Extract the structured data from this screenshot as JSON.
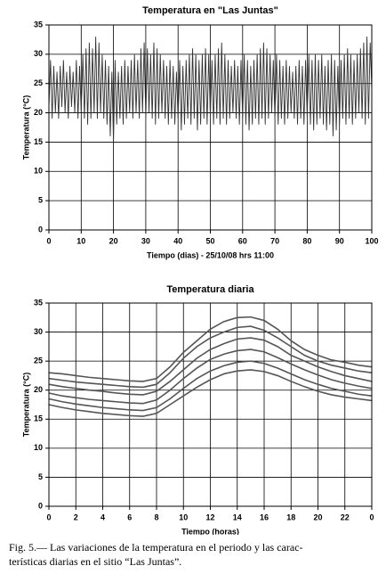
{
  "chart_data": [
    {
      "type": "line",
      "title": "Temperatura en \"Las Juntas\"",
      "xlabel": "Tiempo (dias) - 25/10/08 hrs 11:00",
      "ylabel": "Temperatura (°C)",
      "x": [
        0,
        0.5,
        1,
        1.5,
        2,
        2.5,
        3,
        3.5,
        4,
        4.5,
        5,
        5.5,
        6,
        6.5,
        7,
        7.5,
        8,
        8.5,
        9,
        9.5,
        10,
        10.5,
        11,
        11.5,
        12,
        12.5,
        13,
        13.5,
        14,
        14.5,
        15,
        15.5,
        16,
        16.5,
        17,
        17.5,
        18,
        18.5,
        19,
        19.5,
        20,
        20.5,
        21,
        21.5,
        22,
        22.5,
        23,
        23.5,
        24,
        24.5,
        25,
        25.5,
        26,
        26.5,
        27,
        27.5,
        28,
        28.5,
        29,
        29.5,
        30,
        30.5,
        31,
        31.5,
        32,
        32.5,
        33,
        33.5,
        34,
        34.5,
        35,
        35.5,
        36,
        36.5,
        37,
        37.5,
        38,
        38.5,
        39,
        39.5,
        40,
        40.5,
        41,
        41.5,
        42,
        42.5,
        43,
        43.5,
        44,
        44.5,
        45,
        45.5,
        46,
        46.5,
        47,
        47.5,
        48,
        48.5,
        49,
        49.5,
        50,
        50.5,
        51,
        51.5,
        52,
        52.5,
        53,
        53.5,
        54,
        54.5,
        55,
        55.5,
        56,
        56.5,
        57,
        57.5,
        58,
        58.5,
        59,
        59.5,
        60,
        60.5,
        61,
        61.5,
        62,
        62.5,
        63,
        63.5,
        64,
        64.5,
        65,
        65.5,
        66,
        66.5,
        67,
        67.5,
        68,
        68.5,
        69,
        69.5,
        70,
        70.5,
        71,
        71.5,
        72,
        72.5,
        73,
        73.5,
        74,
        74.5,
        75,
        75.5,
        76,
        76.5,
        77,
        77.5,
        78,
        78.5,
        79,
        79.5,
        80,
        80.5,
        81,
        81.5,
        82,
        82.5,
        83,
        83.5,
        84,
        84.5,
        85,
        85.5,
        86,
        86.5,
        87,
        87.5,
        88,
        88.5,
        89,
        89.5,
        90,
        90.5,
        91,
        91.5,
        92,
        92.5,
        93,
        93.5,
        94,
        94.5,
        95,
        95.5,
        96,
        96.5,
        97,
        97.5,
        98,
        98.5,
        99,
        99.5,
        100
      ],
      "series": [
        {
          "color": "#333333",
          "values": [
            21,
            29,
            19,
            28,
            20,
            27,
            19,
            28,
            21,
            29,
            20,
            27,
            19,
            28,
            21,
            27,
            20,
            29,
            19,
            28,
            20,
            30,
            19,
            31,
            18,
            32,
            19,
            31,
            20,
            33,
            19,
            32,
            20,
            30,
            19,
            29,
            18,
            28,
            16,
            27,
            15,
            29,
            18,
            27,
            19,
            28,
            18,
            29,
            19,
            28,
            20,
            29,
            19,
            30,
            20,
            29,
            19,
            31,
            20,
            32,
            19,
            31,
            20,
            30,
            19,
            32,
            18,
            31,
            19,
            30,
            20,
            29,
            19,
            28,
            18,
            29,
            19,
            28,
            18,
            27,
            19,
            29,
            17,
            28,
            18,
            29,
            19,
            30,
            18,
            31,
            19,
            30,
            17,
            29,
            18,
            30,
            19,
            31,
            18,
            30,
            19,
            29,
            18,
            30,
            19,
            31,
            18,
            32,
            19,
            30,
            18,
            29,
            19,
            28,
            20,
            29,
            19,
            28,
            18,
            29,
            19,
            30,
            18,
            29,
            17,
            28,
            18,
            29,
            19,
            30,
            18,
            31,
            19,
            32,
            18,
            31,
            19,
            30,
            20,
            29,
            19,
            30,
            18,
            29,
            19,
            28,
            18,
            29,
            19,
            28,
            20,
            27,
            19,
            28,
            18,
            29,
            19,
            28,
            18,
            29,
            19,
            30,
            18,
            29,
            17,
            30,
            18,
            29,
            19,
            30,
            18,
            28,
            17,
            29,
            18,
            30,
            16,
            29,
            17,
            28,
            18,
            29,
            19,
            30,
            18,
            31,
            19,
            30,
            18,
            29,
            19,
            30,
            20,
            31,
            19,
            32,
            18,
            33,
            19,
            32,
            24
          ]
        }
      ],
      "xlim": [
        0,
        100
      ],
      "xticks": [
        0,
        10,
        20,
        30,
        40,
        50,
        60,
        70,
        80,
        90,
        100
      ],
      "ylim": [
        0,
        35
      ],
      "yticks": [
        0,
        5,
        10,
        15,
        20,
        25,
        30,
        35
      ],
      "grid": true
    },
    {
      "type": "line",
      "title": "Temperatura diaria",
      "xlabel": "Tiempo (horas)",
      "ylabel": "Temperatura (°C)",
      "x": [
        0,
        1,
        2,
        3,
        4,
        5,
        6,
        7,
        8,
        9,
        10,
        11,
        12,
        13,
        14,
        15,
        16,
        17,
        18,
        19,
        20,
        21,
        22,
        23,
        24
      ],
      "series": [
        {
          "color": "#555555",
          "values": [
            23,
            22.8,
            22.5,
            22.2,
            22,
            21.8,
            21.6,
            21.5,
            22,
            24,
            26.5,
            28.5,
            30.5,
            31.8,
            32.5,
            32.6,
            32,
            30.5,
            28.5,
            27,
            26,
            25.2,
            24.8,
            24.3,
            24
          ]
        },
        {
          "color": "#555555",
          "values": [
            22,
            21.7,
            21.4,
            21.2,
            21,
            20.8,
            20.6,
            20.5,
            21,
            23,
            25.5,
            27.5,
            29,
            30,
            30.8,
            31,
            30.3,
            29,
            27.5,
            26,
            25,
            24.3,
            23.8,
            23.3,
            23
          ]
        },
        {
          "color": "#555555",
          "values": [
            21,
            20.6,
            20.3,
            20,
            19.8,
            19.5,
            19.3,
            19.2,
            19.8,
            21.5,
            23.5,
            25.5,
            27,
            28,
            28.8,
            29,
            28.6,
            27.5,
            26,
            25,
            24,
            23.2,
            22.5,
            22,
            21.5
          ]
        },
        {
          "color": "#555555",
          "values": [
            19.5,
            19,
            18.7,
            18.4,
            18.2,
            18,
            17.8,
            17.7,
            18.3,
            20,
            22,
            23.8,
            25.3,
            26.2,
            26.8,
            27,
            26.6,
            25.6,
            24.5,
            23.5,
            22.6,
            21.8,
            21.2,
            20.7,
            20.3
          ]
        },
        {
          "color": "#555555",
          "values": [
            18.5,
            18,
            17.6,
            17.3,
            17,
            16.8,
            16.6,
            16.5,
            17,
            18.5,
            20.3,
            22,
            23.3,
            24.2,
            24.8,
            25,
            24.6,
            23.8,
            22.8,
            21.8,
            21,
            20.3,
            19.8,
            19.3,
            19
          ]
        },
        {
          "color": "#555555",
          "values": [
            17.5,
            17,
            16.6,
            16.3,
            16,
            15.8,
            15.6,
            15.5,
            16,
            17.5,
            19,
            20.5,
            21.8,
            22.8,
            23.3,
            23.5,
            23.2,
            22.5,
            21.5,
            20.6,
            19.8,
            19.2,
            18.8,
            18.5,
            18.2
          ]
        }
      ],
      "xlim": [
        0,
        24
      ],
      "xticks": [
        0,
        2,
        4,
        6,
        8,
        10,
        12,
        14,
        16,
        18,
        20,
        22,
        {
          "value": 24,
          "label": "0"
        }
      ],
      "ylim": [
        0,
        35
      ],
      "yticks": [
        0,
        5,
        10,
        15,
        20,
        25,
        30,
        35
      ],
      "grid": true
    }
  ],
  "caption": [
    "Fig. 5.— Las variaciones de la temperatura en el periodo y las carac-",
    "terísticas diarias en el sitio “Las Juntas”."
  ]
}
